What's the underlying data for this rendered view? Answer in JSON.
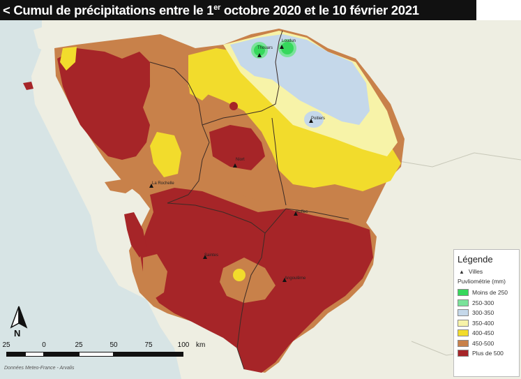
{
  "title": {
    "prefix": "< Cumul de précipitations entre le 1",
    "superscript": "er",
    "suffix": " octobre 2020 et le 10 février 2021"
  },
  "legend": {
    "title": "Légende",
    "cities_label": "Villes",
    "subtitle": "Puvliométrie (mm)",
    "classes": [
      {
        "label": "Moins de 250",
        "color": "#36d85c"
      },
      {
        "label": "250-300",
        "color": "#7ae39a"
      },
      {
        "label": "300-350",
        "color": "#c5d8ea"
      },
      {
        "label": "350-400",
        "color": "#f7f3a8"
      },
      {
        "label": "400-450",
        "color": "#f2dc2c"
      },
      {
        "label": "450-500",
        "color": "#c8814a"
      },
      {
        "label": "Plus de 500",
        "color": "#a62528"
      }
    ]
  },
  "cities": [
    {
      "name": "Thouars"
    },
    {
      "name": "Loudun"
    },
    {
      "name": "Poitiers"
    },
    {
      "name": "Niort"
    },
    {
      "name": "La Rochelle"
    },
    {
      "name": "Ruffec"
    },
    {
      "name": "Saintes"
    },
    {
      "name": "Angoulême"
    }
  ],
  "north_label": "N",
  "scale": {
    "ticks": [
      "25",
      "0",
      "25",
      "50",
      "75",
      "100"
    ],
    "unit": "km"
  },
  "credit": "Données Meteo-France - Arvalis"
}
